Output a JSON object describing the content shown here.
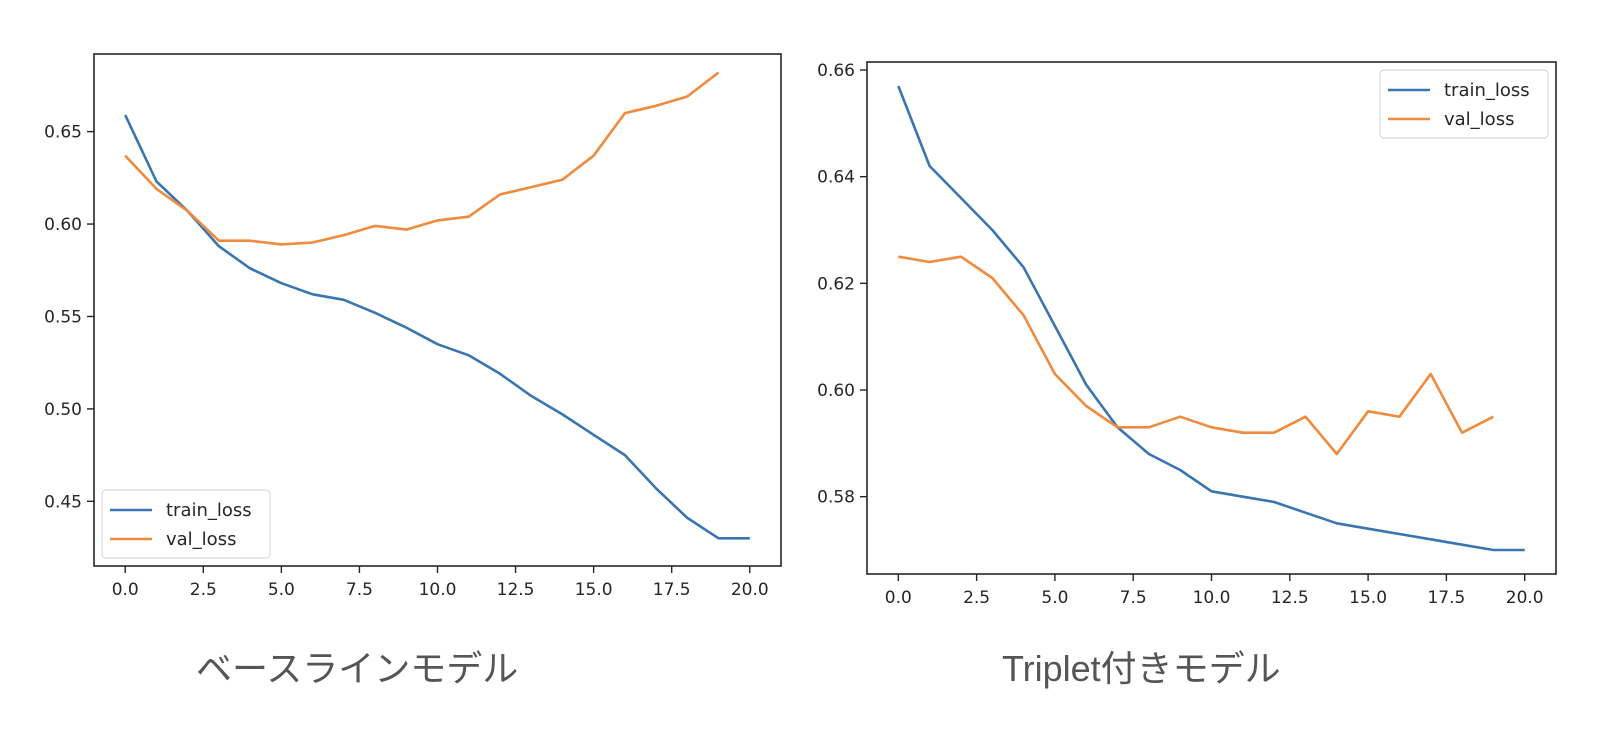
{
  "chart_data": [
    {
      "type": "line",
      "title": "",
      "caption": "ベースラインモデル",
      "xlabel": "",
      "ylabel": "",
      "xlim": [
        -1.0,
        21.0
      ],
      "ylim": [
        0.415,
        0.692
      ],
      "grid": false,
      "legend_position": "lower left",
      "x_ticks": [
        0.0,
        2.5,
        5.0,
        7.5,
        10.0,
        12.5,
        15.0,
        17.5,
        20.0
      ],
      "x_tick_labels": [
        "0.0",
        "2.5",
        "5.0",
        "7.5",
        "10.0",
        "12.5",
        "15.0",
        "17.5",
        "20.0"
      ],
      "y_ticks": [
        0.45,
        0.5,
        0.55,
        0.6,
        0.65
      ],
      "y_tick_labels": [
        "0.45",
        "0.50",
        "0.55",
        "0.60",
        "0.65"
      ],
      "series": [
        {
          "name": "train_loss",
          "color": "#3a75b0",
          "x": [
            0,
            1,
            2,
            3,
            4,
            5,
            6,
            7,
            8,
            9,
            10,
            11,
            12,
            13,
            14,
            15,
            16,
            17,
            18,
            19,
            20
          ],
          "values": [
            0.659,
            0.623,
            0.607,
            0.588,
            0.576,
            0.568,
            0.562,
            0.559,
            0.552,
            0.544,
            0.535,
            0.529,
            0.519,
            0.507,
            0.497,
            0.486,
            0.475,
            0.457,
            0.441,
            0.43,
            0.43
          ]
        },
        {
          "name": "val_loss",
          "color": "#f08a3c",
          "x": [
            0,
            1,
            2,
            3,
            4,
            5,
            6,
            7,
            8,
            9,
            10,
            11,
            12,
            13,
            14,
            15,
            16,
            17,
            18,
            19
          ],
          "values": [
            0.637,
            0.619,
            0.607,
            0.591,
            0.591,
            0.589,
            0.59,
            0.594,
            0.599,
            0.597,
            0.602,
            0.604,
            0.616,
            0.62,
            0.624,
            0.637,
            0.66,
            0.664,
            0.669,
            0.682
          ]
        }
      ]
    },
    {
      "type": "line",
      "title": "",
      "caption": "Triplet付きモデル",
      "xlabel": "",
      "ylabel": "",
      "xlim": [
        -1.0,
        21.0
      ],
      "ylim": [
        0.5655,
        0.6615
      ],
      "grid": false,
      "legend_position": "upper right",
      "x_ticks": [
        0.0,
        2.5,
        5.0,
        7.5,
        10.0,
        12.5,
        15.0,
        17.5,
        20.0
      ],
      "x_tick_labels": [
        "0.0",
        "2.5",
        "5.0",
        "7.5",
        "10.0",
        "12.5",
        "15.0",
        "17.5",
        "20.0"
      ],
      "y_ticks": [
        0.58,
        0.6,
        0.62,
        0.64,
        0.66
      ],
      "y_tick_labels": [
        "0.58",
        "0.60",
        "0.62",
        "0.64",
        "0.66"
      ],
      "series": [
        {
          "name": "train_loss",
          "color": "#3a75b0",
          "x": [
            0,
            1,
            2,
            3,
            4,
            5,
            6,
            7,
            8,
            9,
            10,
            11,
            12,
            13,
            14,
            15,
            16,
            17,
            18,
            19,
            20
          ],
          "values": [
            0.657,
            0.642,
            0.636,
            0.63,
            0.623,
            0.612,
            0.601,
            0.593,
            0.588,
            0.585,
            0.581,
            0.58,
            0.579,
            0.577,
            0.575,
            0.574,
            0.573,
            0.572,
            0.571,
            0.57,
            0.57
          ]
        },
        {
          "name": "val_loss",
          "color": "#f08a3c",
          "x": [
            0,
            1,
            2,
            3,
            4,
            5,
            6,
            7,
            8,
            9,
            10,
            11,
            12,
            13,
            14,
            15,
            16,
            17,
            18,
            19
          ],
          "values": [
            0.625,
            0.624,
            0.625,
            0.621,
            0.614,
            0.603,
            0.597,
            0.593,
            0.593,
            0.595,
            0.593,
            0.592,
            0.592,
            0.595,
            0.588,
            0.596,
            0.595,
            0.603,
            0.592,
            0.595
          ]
        }
      ]
    }
  ],
  "captions": {
    "left": "ベースラインモデル",
    "right": "Triplet付きモデル"
  },
  "legend": {
    "train_label": "train_loss",
    "val_label": "val_loss"
  }
}
